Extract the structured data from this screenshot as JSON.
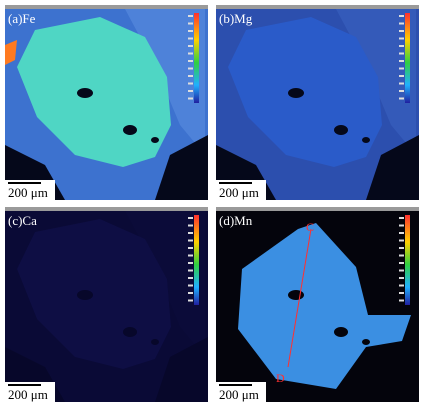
{
  "panels": [
    {
      "label": "(a)Fe",
      "scale_bar": "200 μm"
    },
    {
      "label": "(b)Mg",
      "scale_bar": "200 μm"
    },
    {
      "label": "(c)Ca",
      "scale_bar": "200 μm"
    },
    {
      "label": "(d)Mn",
      "scale_bar": "200 μm",
      "profile": {
        "start": "C",
        "end": "D"
      }
    }
  ]
}
